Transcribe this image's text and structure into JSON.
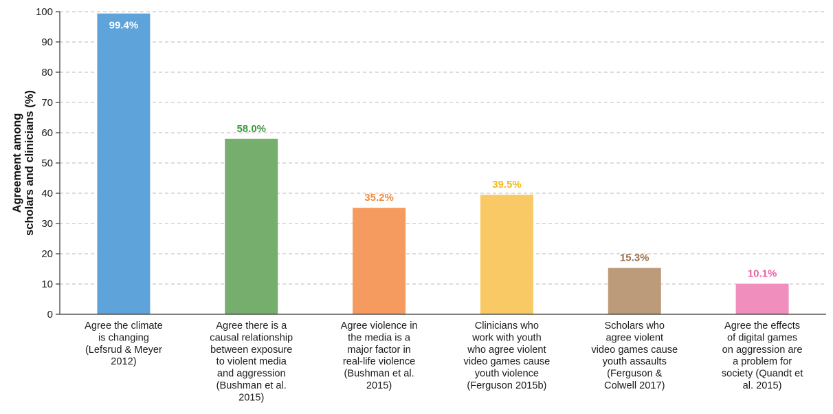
{
  "chart_data": {
    "type": "bar",
    "ylabel_lines": [
      "Agreement among",
      "scholars and clinicians (%)"
    ],
    "ylim": [
      0,
      100
    ],
    "yticks": [
      0,
      10,
      20,
      30,
      40,
      50,
      60,
      70,
      80,
      90,
      100
    ],
    "grid": true,
    "categories": [
      [
        "Agree the climate",
        "is changing",
        "(Lefsrud & Meyer",
        "2012)"
      ],
      [
        "Agree there is a",
        "causal relationship",
        "between exposure",
        "to violent media",
        "and aggression",
        "(Bushman et al.",
        "2015)"
      ],
      [
        "Agree violence in",
        "the media is a",
        "major factor in",
        "real-life violence",
        "(Bushman et al.",
        "2015)"
      ],
      [
        "Clinicians who",
        "work with youth",
        "who agree violent",
        "video games cause",
        "youth violence",
        "(Ferguson 2015b)"
      ],
      [
        "Scholars who",
        "agree violent",
        "video games cause",
        "youth assaults",
        "(Ferguson &",
        "Colwell 2017)"
      ],
      [
        "Agree the effects",
        "of digital games",
        "on aggression are",
        "a problem for",
        "society (Quandt et",
        "al. 2015)"
      ]
    ],
    "values": [
      99.4,
      58.0,
      35.2,
      39.5,
      15.3,
      10.1
    ],
    "value_labels": [
      "99.4%",
      "58.0%",
      "35.2%",
      "39.5%",
      "15.3%",
      "10.1%"
    ],
    "bar_colors": [
      "#5ea3da",
      "#76ae6d",
      "#f59b5f",
      "#f8c965",
      "#bc9b7a",
      "#f08fbd"
    ],
    "label_colors": [
      "#ffffff",
      "#3b9a3e",
      "#f08a3c",
      "#f2b81e",
      "#9a6f48",
      "#e85fa2"
    ]
  }
}
